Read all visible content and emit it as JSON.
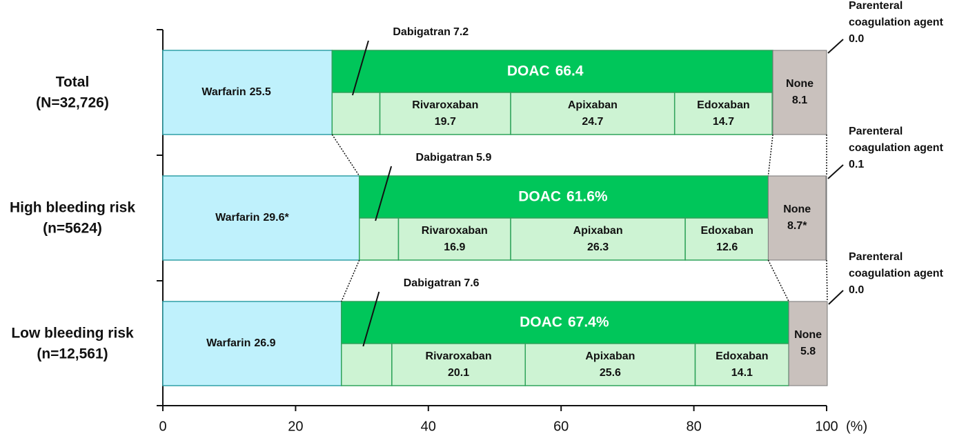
{
  "chart_data": {
    "type": "nested_stacked_bar",
    "categories": [
      "Total",
      "High bleeding risk",
      "Low bleeding risk"
    ],
    "category_notes": [
      "(N=32,726)",
      "(n=5624)",
      "(n=12,561)"
    ],
    "series": [
      {
        "name": "Warfarin",
        "color": "#bff1fc",
        "values": [
          25.5,
          29.6,
          26.9
        ],
        "value_labels": [
          "25.5",
          "29.6*",
          "26.9"
        ]
      },
      {
        "name": "DOAC",
        "color": "#00c65a",
        "values": [
          66.4,
          61.6,
          67.4
        ],
        "value_labels": [
          "66.4",
          "61.6%",
          "67.4%"
        ]
      },
      {
        "name": "None",
        "color": "#c9c1bd",
        "values": [
          8.1,
          8.7,
          5.8
        ],
        "value_labels": [
          "8.1",
          "8.7*",
          "5.8"
        ]
      },
      {
        "name": "Parenteral coagulation agent",
        "color": "#c9c1bd",
        "values": [
          0.0,
          0.1,
          0.0
        ],
        "value_labels": [
          "0.0",
          "0.1",
          "0.0"
        ]
      }
    ],
    "doac_components": [
      {
        "name": "Dabigatran",
        "color": "#cdf3d3",
        "values": [
          7.2,
          5.9,
          7.6
        ]
      },
      {
        "name": "Rivaroxaban",
        "color": "#cdf3d3",
        "values": [
          19.7,
          16.9,
          20.1
        ]
      },
      {
        "name": "Apixaban",
        "color": "#cdf3d3",
        "values": [
          24.7,
          26.3,
          25.6
        ]
      },
      {
        "name": "Edoxaban",
        "color": "#cdf3d3",
        "values": [
          14.7,
          12.6,
          14.1
        ]
      }
    ],
    "xlim": [
      0,
      100
    ],
    "xticks": [
      0,
      20,
      40,
      60,
      80,
      100
    ],
    "x_unit": "(%)"
  }
}
